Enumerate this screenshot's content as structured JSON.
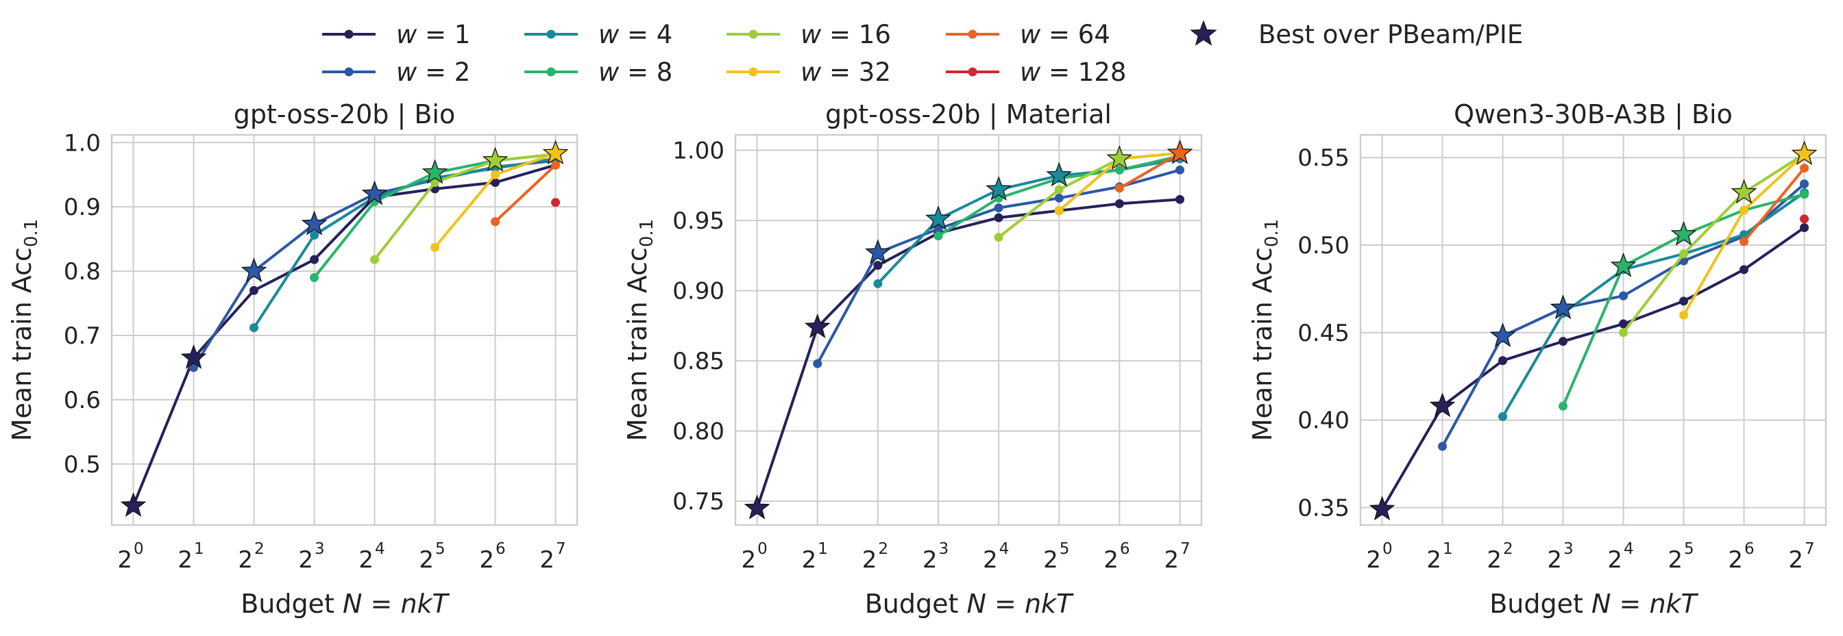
{
  "legend": {
    "series": [
      {
        "label": "w = 1",
        "color": "#26215a"
      },
      {
        "label": "w = 2",
        "color": "#2c58a5"
      },
      {
        "label": "w = 4",
        "color": "#1a8a9a"
      },
      {
        "label": "w = 8",
        "color": "#29b46a"
      },
      {
        "label": "w = 16",
        "color": "#9fcd35"
      },
      {
        "label": "w = 32",
        "color": "#f2c21b"
      },
      {
        "label": "w = 64",
        "color": "#ec6320"
      },
      {
        "label": "w = 128",
        "color": "#d12832"
      }
    ],
    "best_label": "Best over PBeam/PIE",
    "best_icon": "star-icon"
  },
  "chart_data": [
    {
      "type": "line",
      "title": "gpt-oss-20b | Bio",
      "xlabel": "Budget N = nkT",
      "ylabel": "Mean train Acc0.1",
      "x_scale": "log2",
      "x_ticks": [
        1,
        2,
        4,
        8,
        16,
        32,
        64,
        128
      ],
      "x_tick_labels": [
        {
          "base": "2",
          "exp": "0"
        },
        {
          "base": "2",
          "exp": "1"
        },
        {
          "base": "2",
          "exp": "2"
        },
        {
          "base": "2",
          "exp": "3"
        },
        {
          "base": "2",
          "exp": "4"
        },
        {
          "base": "2",
          "exp": "5"
        },
        {
          "base": "2",
          "exp": "6"
        },
        {
          "base": "2",
          "exp": "7"
        }
      ],
      "xlim": [
        0.78,
        164
      ],
      "ylim": [
        0.405,
        1.012
      ],
      "y_ticks": [
        0.5,
        0.6,
        0.7,
        0.8,
        0.9,
        1.0
      ],
      "y_tick_labels": [
        "0.5",
        "0.6",
        "0.7",
        "0.8",
        "0.9",
        "1.0"
      ],
      "grid": true,
      "series": [
        {
          "name": "w = 1",
          "x": [
            1,
            2,
            4,
            8,
            16,
            32,
            64,
            128
          ],
          "y": [
            0.435,
            0.665,
            0.77,
            0.818,
            0.915,
            0.928,
            0.938,
            0.965
          ]
        },
        {
          "name": "w = 2",
          "x": [
            2,
            4,
            8,
            16,
            32,
            64,
            128
          ],
          "y": [
            0.65,
            0.8,
            0.873,
            0.92,
            0.942,
            0.962,
            0.972
          ]
        },
        {
          "name": "w = 4",
          "x": [
            4,
            8,
            16,
            32,
            64,
            128
          ],
          "y": [
            0.712,
            0.856,
            0.915,
            0.945,
            0.96,
            0.975
          ]
        },
        {
          "name": "w = 8",
          "x": [
            8,
            16,
            32,
            64,
            128
          ],
          "y": [
            0.79,
            0.908,
            0.953,
            0.972,
            0.982
          ]
        },
        {
          "name": "w = 16",
          "x": [
            16,
            32,
            64,
            128
          ],
          "y": [
            0.818,
            0.938,
            0.972,
            0.982
          ]
        },
        {
          "name": "w = 32",
          "x": [
            32,
            64,
            128
          ],
          "y": [
            0.837,
            0.95,
            0.983
          ]
        },
        {
          "name": "w = 64",
          "x": [
            64,
            128
          ],
          "y": [
            0.877,
            0.965
          ]
        },
        {
          "name": "w = 128",
          "x": [
            128
          ],
          "y": [
            0.907
          ]
        }
      ],
      "best": [
        {
          "x": 1,
          "y": 0.435,
          "series": "w = 1"
        },
        {
          "x": 2,
          "y": 0.665,
          "series": "w = 1"
        },
        {
          "x": 4,
          "y": 0.8,
          "series": "w = 2"
        },
        {
          "x": 8,
          "y": 0.873,
          "series": "w = 2"
        },
        {
          "x": 16,
          "y": 0.92,
          "series": "w = 2"
        },
        {
          "x": 32,
          "y": 0.953,
          "series": "w = 8"
        },
        {
          "x": 64,
          "y": 0.972,
          "series": "w = 16"
        },
        {
          "x": 128,
          "y": 0.983,
          "series": "w = 32"
        }
      ]
    },
    {
      "type": "line",
      "title": "gpt-oss-20b | Material",
      "xlabel": "Budget N = nkT",
      "ylabel": "Mean train Acc0.1",
      "x_scale": "log2",
      "x_ticks": [
        1,
        2,
        4,
        8,
        16,
        32,
        64,
        128
      ],
      "x_tick_labels": [
        {
          "base": "2",
          "exp": "0"
        },
        {
          "base": "2",
          "exp": "1"
        },
        {
          "base": "2",
          "exp": "2"
        },
        {
          "base": "2",
          "exp": "3"
        },
        {
          "base": "2",
          "exp": "4"
        },
        {
          "base": "2",
          "exp": "5"
        },
        {
          "base": "2",
          "exp": "6"
        },
        {
          "base": "2",
          "exp": "7"
        }
      ],
      "xlim": [
        0.78,
        164
      ],
      "ylim": [
        0.733,
        1.011
      ],
      "y_ticks": [
        0.75,
        0.8,
        0.85,
        0.9,
        0.95,
        1.0
      ],
      "y_tick_labels": [
        "0.75",
        "0.80",
        "0.85",
        "0.90",
        "0.95",
        "1.00"
      ],
      "grid": true,
      "series": [
        {
          "name": "w = 1",
          "x": [
            1,
            2,
            4,
            8,
            16,
            32,
            64,
            128
          ],
          "y": [
            0.745,
            0.874,
            0.918,
            0.941,
            0.952,
            0.957,
            0.962,
            0.965
          ]
        },
        {
          "name": "w = 2",
          "x": [
            2,
            4,
            8,
            16,
            32,
            64,
            128
          ],
          "y": [
            0.848,
            0.927,
            0.944,
            0.959,
            0.966,
            0.974,
            0.986
          ]
        },
        {
          "name": "w = 4",
          "x": [
            4,
            8,
            16,
            32,
            64,
            128
          ],
          "y": [
            0.905,
            0.951,
            0.972,
            0.982,
            0.986,
            0.994
          ]
        },
        {
          "name": "w = 8",
          "x": [
            8,
            16,
            32,
            64,
            128
          ],
          "y": [
            0.939,
            0.966,
            0.98,
            0.986,
            0.996
          ]
        },
        {
          "name": "w = 16",
          "x": [
            16,
            32,
            64,
            128
          ],
          "y": [
            0.938,
            0.972,
            0.994,
            0.998
          ]
        },
        {
          "name": "w = 32",
          "x": [
            32,
            64,
            128
          ],
          "y": [
            0.957,
            0.994,
            0.998
          ]
        },
        {
          "name": "w = 64",
          "x": [
            64,
            128
          ],
          "y": [
            0.973,
            0.998
          ]
        },
        {
          "name": "w = 128",
          "x": [
            128
          ],
          "y": [
            0.998
          ]
        }
      ],
      "best": [
        {
          "x": 1,
          "y": 0.745,
          "series": "w = 1"
        },
        {
          "x": 2,
          "y": 0.874,
          "series": "w = 1"
        },
        {
          "x": 4,
          "y": 0.927,
          "series": "w = 2"
        },
        {
          "x": 8,
          "y": 0.951,
          "series": "w = 4"
        },
        {
          "x": 16,
          "y": 0.972,
          "series": "w = 4"
        },
        {
          "x": 32,
          "y": 0.982,
          "series": "w = 4"
        },
        {
          "x": 64,
          "y": 0.994,
          "series": "w = 16"
        },
        {
          "x": 128,
          "y": 0.998,
          "series": "w = 64"
        }
      ]
    },
    {
      "type": "line",
      "title": "Qwen3-30B-A3B | Bio",
      "xlabel": "Budget N = nkT",
      "ylabel": "Mean train Acc0.1",
      "x_scale": "log2",
      "x_ticks": [
        1,
        2,
        4,
        8,
        16,
        32,
        64,
        128
      ],
      "x_tick_labels": [
        {
          "base": "2",
          "exp": "0"
        },
        {
          "base": "2",
          "exp": "1"
        },
        {
          "base": "2",
          "exp": "2"
        },
        {
          "base": "2",
          "exp": "3"
        },
        {
          "base": "2",
          "exp": "4"
        },
        {
          "base": "2",
          "exp": "5"
        },
        {
          "base": "2",
          "exp": "6"
        },
        {
          "base": "2",
          "exp": "7"
        }
      ],
      "xlim": [
        0.78,
        164
      ],
      "ylim": [
        0.34,
        0.563
      ],
      "y_ticks": [
        0.35,
        0.4,
        0.45,
        0.5,
        0.55
      ],
      "y_tick_labels": [
        "0.35",
        "0.40",
        "0.45",
        "0.50",
        "0.55"
      ],
      "grid": true,
      "series": [
        {
          "name": "w = 1",
          "x": [
            1,
            2,
            4,
            8,
            16,
            32,
            64,
            128
          ],
          "y": [
            0.349,
            0.408,
            0.434,
            0.445,
            0.455,
            0.468,
            0.486,
            0.51
          ]
        },
        {
          "name": "w = 2",
          "x": [
            2,
            4,
            8,
            16,
            32,
            64,
            128
          ],
          "y": [
            0.385,
            0.448,
            0.464,
            0.471,
            0.491,
            0.505,
            0.535
          ]
        },
        {
          "name": "w = 4",
          "x": [
            4,
            8,
            16,
            32,
            64,
            128
          ],
          "y": [
            0.402,
            0.461,
            0.486,
            0.495,
            0.506,
            0.53
          ]
        },
        {
          "name": "w = 8",
          "x": [
            8,
            16,
            32,
            64,
            128
          ],
          "y": [
            0.408,
            0.488,
            0.506,
            0.52,
            0.529
          ]
        },
        {
          "name": "w = 16",
          "x": [
            16,
            32,
            64,
            128
          ],
          "y": [
            0.45,
            0.495,
            0.53,
            0.552
          ]
        },
        {
          "name": "w = 32",
          "x": [
            32,
            64,
            128
          ],
          "y": [
            0.46,
            0.52,
            0.552
          ]
        },
        {
          "name": "w = 64",
          "x": [
            64,
            128
          ],
          "y": [
            0.502,
            0.544
          ]
        },
        {
          "name": "w = 128",
          "x": [
            128
          ],
          "y": [
            0.515
          ]
        }
      ],
      "best": [
        {
          "x": 1,
          "y": 0.349,
          "series": "w = 1"
        },
        {
          "x": 2,
          "y": 0.408,
          "series": "w = 1"
        },
        {
          "x": 4,
          "y": 0.448,
          "series": "w = 2"
        },
        {
          "x": 8,
          "y": 0.464,
          "series": "w = 2"
        },
        {
          "x": 16,
          "y": 0.488,
          "series": "w = 8"
        },
        {
          "x": 32,
          "y": 0.506,
          "series": "w = 8"
        },
        {
          "x": 64,
          "y": 0.53,
          "series": "w = 16"
        },
        {
          "x": 128,
          "y": 0.552,
          "series": "w = 32"
        }
      ]
    }
  ]
}
